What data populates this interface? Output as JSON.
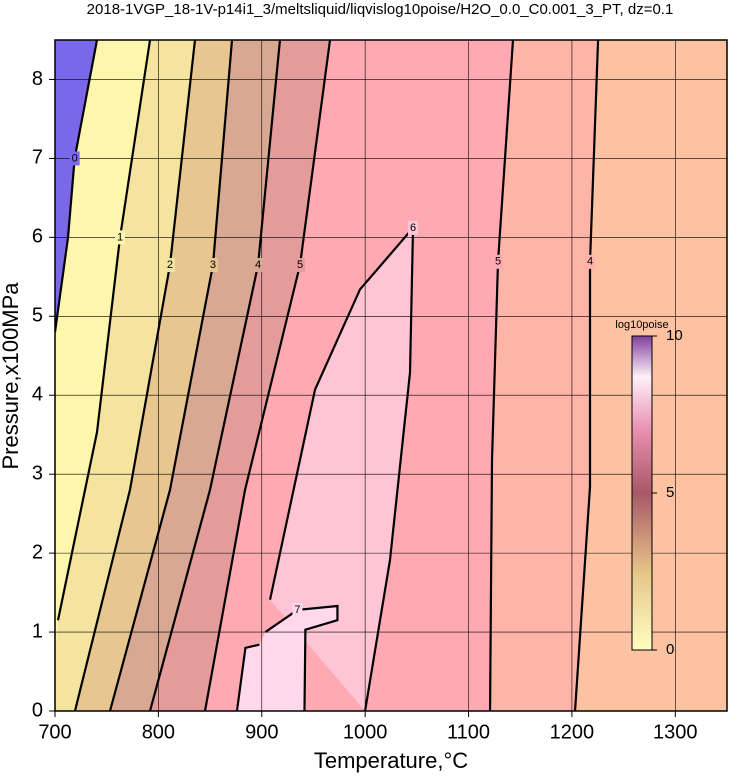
{
  "chart_data": {
    "type": "contour",
    "title": "2018-1VGP_18-1V-p14i1_3/meltsliquid/liqvislog10poise/H2O_0.0_C0.001_3_PT, dz=0.1",
    "x_label": "Temperature,°C",
    "y_label": "Pressure,x100MPa",
    "xlim": [
      700,
      1350
    ],
    "ylim": [
      0,
      8.5
    ],
    "xticks": [
      700,
      800,
      900,
      1000,
      1100,
      1200,
      1300
    ],
    "yticks": [
      0,
      1,
      2,
      3,
      4,
      5,
      6,
      7,
      8
    ],
    "grid": true,
    "background_color": "#fcc2a2",
    "contours": [
      {
        "level": 4,
        "fill_side": "left",
        "fill": "#ffb4a8",
        "x": [
          1203,
          1217.5,
          1217.5,
          1225.3
        ],
        "y": [
          0,
          2.84,
          5.69,
          8.5
        ]
      },
      {
        "level": 5,
        "fill_side": "left",
        "fill": "#ffaab2",
        "x": [
          1120.8,
          1122.7,
          1128.5,
          1143
        ],
        "y": [
          0,
          3.18,
          5.69,
          8.5
        ]
      },
      {
        "level": 6,
        "fill_side": "closed",
        "fill": "#ffc4d6",
        "x": [
          999.9,
          1024,
          1043.4,
          1046.3,
          995,
          951.5,
          908
        ],
        "y": [
          0,
          1.91,
          4.29,
          6.12,
          5.34,
          4.07,
          1.41
        ]
      },
      {
        "level": 7,
        "fill_side": "closed",
        "fill": "#ffd8ec",
        "x": [
          876,
          884.2,
          897.7,
          null,
          903.5,
          934.5,
          973.2,
          973.2,
          942.2,
          941.3
        ],
        "y": [
          0,
          0.8,
          0.84,
          null,
          1.0,
          1.28,
          1.33,
          1.15,
          1.03,
          0
        ]
      },
      {
        "level": 5,
        "fill_side": "left",
        "fill": "#e49c9a",
        "x": [
          845.1,
          883.8,
          937,
          966
        ],
        "y": [
          0,
          2.8,
          5.65,
          8.5
        ]
      },
      {
        "level": 4,
        "fill_side": "left",
        "fill": "#d9a892",
        "x": [
          791.9,
          849.9,
          896.4,
          917.6
        ],
        "y": [
          0,
          2.8,
          5.65,
          8.5
        ]
      },
      {
        "level": 3,
        "fill_side": "left",
        "fill": "#e8c690",
        "x": [
          753.2,
          811.2,
          852.8,
          871.2
        ],
        "y": [
          0,
          2.8,
          5.65,
          8.5
        ]
      },
      {
        "level": 2,
        "fill_side": "left",
        "fill": "#f5e4a0",
        "x": [
          719.3,
          772.5,
          811.2,
          835.4
        ],
        "y": [
          0,
          2.8,
          5.65,
          8.5
        ]
      },
      {
        "level": 1,
        "fill_side": "left",
        "fill": "#fdf6ac",
        "x": [
          702.9,
          740.6,
          762.9,
          791.9
        ],
        "y": [
          1.15,
          3.53,
          6.0,
          8.5
        ]
      },
      {
        "level": 0,
        "fill_side": "left",
        "fill": "#7b68e8",
        "x": [
          700,
          712.6,
          719,
          740.6
        ],
        "y": [
          4.8,
          6.0,
          7.0,
          8.5
        ]
      }
    ],
    "colorbar": {
      "label": "log10poise",
      "lim": [
        0,
        10
      ],
      "ticks": [
        0,
        5,
        10
      ]
    }
  }
}
